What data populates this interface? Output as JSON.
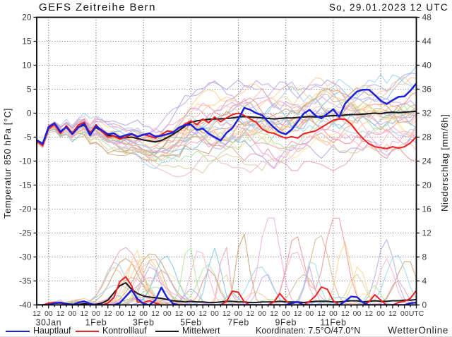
{
  "header": {
    "title": "GEFS Zeitreihe Bern",
    "run_datetime": "So, 29.01.2023 12 UTC"
  },
  "footer": {
    "coordinates": "Koordinaten: 7.5°O/47.0°N",
    "branding": "WetterOnline"
  },
  "legend": {
    "items": [
      {
        "label": "Hauptlauf",
        "color": "#1a22dd"
      },
      {
        "label": "Kontrolllauf",
        "color": "#ee2222"
      },
      {
        "label": "Mittelwert",
        "color": "#1a1a1a"
      }
    ]
  },
  "chart_data": {
    "type": "line",
    "title": "GEFS Zeitreihe Bern",
    "subtitle": "So, 29.01.2023 12 UTC",
    "x_axis": {
      "total_hours": 384,
      "step_hours": 6,
      "tick_every_hours": 12,
      "tick_label_pattern": [
        "12",
        "00"
      ],
      "utc_label": "UTC",
      "date_labels": [
        {
          "hour": 12,
          "label": "30Jan"
        },
        {
          "hour": 60,
          "label": "1Feb"
        },
        {
          "hour": 108,
          "label": "3Feb"
        },
        {
          "hour": 156,
          "label": "5Feb"
        },
        {
          "hour": 204,
          "label": "7Feb"
        },
        {
          "hour": 252,
          "label": "9Feb"
        },
        {
          "hour": 300,
          "label": "11Feb"
        }
      ],
      "gridline_hours": [
        12,
        60,
        108,
        156,
        204,
        252,
        300,
        348
      ]
    },
    "y_left": {
      "title": "Temperatur 850 hPa [°C]",
      "min": -40,
      "max": 20,
      "tick_step": 5
    },
    "y_right": {
      "title": "Niederschlag [mm/6h]",
      "min": 0,
      "max": 48,
      "tick_step": 4
    },
    "grid": {
      "horizontal_step_degC": 5,
      "style": "dotted"
    },
    "series": {
      "hauptlauf": {
        "color": "#1a22dd",
        "temperature": [
          -5.6,
          -6.4,
          -2.9,
          -2.1,
          -3.9,
          -2.9,
          -4.4,
          -3.0,
          -2.2,
          -4.6,
          -2.7,
          -3.6,
          -4.4,
          -4.2,
          -5.0,
          -4.6,
          -4.3,
          -4.9,
          -4.5,
          -4.2,
          -4.9,
          -4.7,
          -4.4,
          -4.0,
          -3.0,
          -2.5,
          -2.4,
          -3.5,
          -3.2,
          -4.3,
          -5.0,
          -5.7,
          -4.1,
          -3.1,
          -1.2,
          1.1,
          0.7,
          0.0,
          -0.4,
          -1.8,
          -3.0,
          -4.0,
          -4.4,
          -3.4,
          -1.8,
          -0.1,
          0.7,
          -0.5,
          -1.1,
          -0.1,
          0.8,
          -0.8,
          2.0,
          3.3,
          4.5,
          4.9,
          4.9,
          3.8,
          2.6,
          1.9,
          2.7,
          3.4,
          3.5,
          4.7,
          6.2
        ],
        "precipitation": [
          0,
          0,
          0,
          0.3,
          0.4,
          0.2,
          0,
          0.4,
          0.6,
          0.2,
          0,
          0,
          0,
          0,
          0.3,
          1.4,
          2.5,
          1.0,
          0.2,
          0,
          0.8,
          2.9,
          1.2,
          0.2,
          0,
          0,
          0,
          0,
          0,
          0,
          0,
          0,
          0,
          0,
          0,
          0,
          0,
          0,
          0,
          0,
          0,
          0,
          0,
          0.3,
          0.5,
          0,
          0,
          0,
          0,
          0,
          0,
          0,
          0.6,
          1.4,
          1.3,
          0.4,
          0,
          0,
          0,
          0,
          0,
          0,
          0,
          0.3,
          0.4
        ]
      },
      "kontrolllauf": {
        "color": "#ee2222",
        "temperature": [
          -5.8,
          -6.8,
          -3.3,
          -2.4,
          -4.2,
          -2.6,
          -4.2,
          -2.5,
          -1.9,
          -4.2,
          -2.4,
          -3.9,
          -5.0,
          -4.8,
          -5.4,
          -5.0,
          -4.4,
          -5.0,
          -4.4,
          -4.8,
          -5.2,
          -4.5,
          -3.7,
          -3.9,
          -3.1,
          -2.3,
          -1.6,
          -2.4,
          -1.2,
          -2.0,
          -0.8,
          -1.8,
          -1.0,
          -0.3,
          0.0,
          -0.5,
          -1.2,
          -1.9,
          -3.3,
          -4.0,
          -4.2,
          -4.8,
          -5.2,
          -4.9,
          -5.2,
          -4.3,
          -4.0,
          -3.7,
          -3.0,
          -2.2,
          -1.5,
          -1.2,
          -1.3,
          -2.3,
          -3.9,
          -5.3,
          -6.4,
          -7.0,
          -7.2,
          -7.4,
          -7.0,
          -7.3,
          -7.0,
          -6.2,
          -4.9
        ],
        "precipitation": [
          0,
          0,
          0.3,
          0.4,
          0.3,
          0,
          0,
          0,
          0,
          0,
          0,
          0,
          0.3,
          1.2,
          3.9,
          4.7,
          3.2,
          0.5,
          0.4,
          0.7,
          0.3,
          0,
          0,
          0,
          0,
          0,
          0,
          0,
          0,
          0,
          0,
          0,
          0.6,
          2.3,
          2.1,
          0.5,
          0,
          0,
          0,
          0,
          0.5,
          1.9,
          0.7,
          0,
          0,
          0,
          0.6,
          1.5,
          3.0,
          2.6,
          0.7,
          0,
          0,
          0,
          0,
          0,
          0.5,
          1.7,
          0.8,
          0,
          0,
          0.4,
          0.6,
          1.1,
          2.4
        ]
      },
      "mittelwert": {
        "color": "#1a1a1a",
        "temperature": [
          -5.9,
          -6.6,
          -3.1,
          -2.4,
          -3.8,
          -2.9,
          -4.1,
          -2.9,
          -2.5,
          -4.0,
          -3.0,
          -3.8,
          -4.6,
          -4.8,
          -5.2,
          -5.1,
          -5.0,
          -5.3,
          -5.6,
          -5.8,
          -6.0,
          -5.7,
          -5.1,
          -4.4,
          -3.6,
          -2.7,
          -1.9,
          -1.6,
          -1.4,
          -1.3,
          -1.2,
          -1.2,
          -1.1,
          -1.0,
          -0.8,
          -0.7,
          -0.8,
          -0.9,
          -1.0,
          -1.1,
          -1.2,
          -1.1,
          -1.0,
          -1.0,
          -0.9,
          -0.8,
          -0.7,
          -0.8,
          -0.7,
          -0.6,
          -0.5,
          -0.5,
          -0.4,
          -0.3,
          -0.3,
          -0.2,
          -0.1,
          0.0,
          -0.1,
          0.1,
          0.2,
          0.1,
          0.2,
          0.3,
          0.4
        ],
        "precipitation": [
          0,
          0,
          0.2,
          0.3,
          0.3,
          0.2,
          0.1,
          0.1,
          0.2,
          0.1,
          0.1,
          0.3,
          0.8,
          2.0,
          3.2,
          3.7,
          2.6,
          1.9,
          1.5,
          1.3,
          1.2,
          1.1,
          0.9,
          0.7,
          0.6,
          0.5,
          0.6,
          0.5,
          0.5,
          0.4,
          0.4,
          0.5,
          0.6,
          0.6,
          0.5,
          0.5,
          0.4,
          0.4,
          0.5,
          0.5,
          0.5,
          0.6,
          0.5,
          0.5,
          0.5,
          0.4,
          0.5,
          0.6,
          0.6,
          0.6,
          0.5,
          0.5,
          0.6,
          0.7,
          0.7,
          0.5,
          0.6,
          0.7,
          0.6,
          0.6,
          0.7,
          0.7,
          0.8,
          0.8,
          0.9
        ]
      }
    },
    "ensemble": {
      "member_count": 30,
      "seed": 1379,
      "line_opacity": 0.85,
      "palette": [
        "#e9a0ac",
        "#f6b6c6",
        "#ef8f8f",
        "#c99c6e",
        "#d8b48e",
        "#ffd28e",
        "#ffe0a2",
        "#ffc49e",
        "#9fd4ee",
        "#7cc3e6",
        "#aee2a0",
        "#c6a9e2",
        "#b3a6ea",
        "#f2a8d8",
        "#e3c9a2"
      ]
    }
  }
}
